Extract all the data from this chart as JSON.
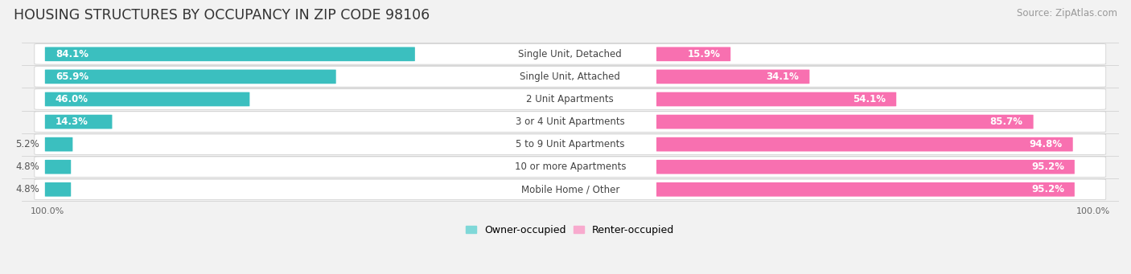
{
  "title": "HOUSING STRUCTURES BY OCCUPANCY IN ZIP CODE 98106",
  "source": "Source: ZipAtlas.com",
  "categories": [
    "Single Unit, Detached",
    "Single Unit, Attached",
    "2 Unit Apartments",
    "3 or 4 Unit Apartments",
    "5 to 9 Unit Apartments",
    "10 or more Apartments",
    "Mobile Home / Other"
  ],
  "owner_pct": [
    84.1,
    65.9,
    46.0,
    14.3,
    5.2,
    4.8,
    4.8
  ],
  "renter_pct": [
    15.9,
    34.1,
    54.1,
    85.7,
    94.8,
    95.2,
    95.2
  ],
  "owner_color": "#3BBFBF",
  "renter_color": "#F870B0",
  "owner_color_light": "#7FD8D8",
  "renter_color_light": "#F8AACE",
  "bg_color": "#F2F2F2",
  "row_bg_color": "#E4E4E8",
  "bar_height": 0.62,
  "title_fontsize": 12.5,
  "label_fontsize": 8.5,
  "category_fontsize": 8.5,
  "source_fontsize": 8.5,
  "legend_fontsize": 9,
  "axis_label_fontsize": 8,
  "owner_threshold": 0.12
}
